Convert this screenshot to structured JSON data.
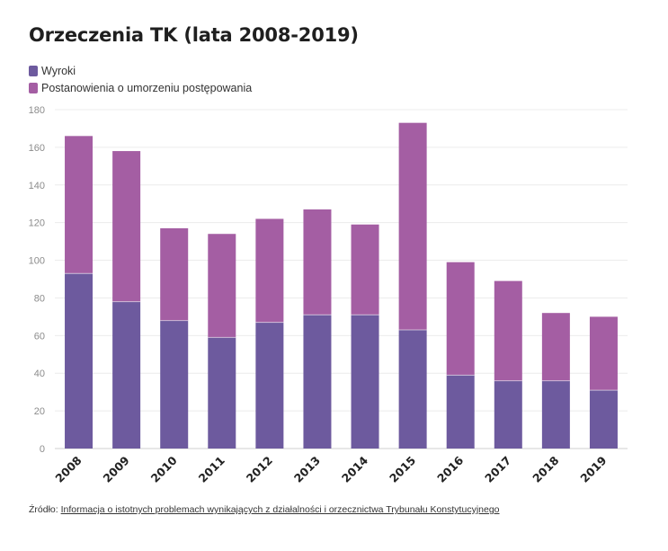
{
  "title": "Orzeczenia TK (lata 2008-2019)",
  "source": {
    "label": "Źródło:",
    "link_text": "Informacja o istotnych problemach wynikających z działalności i orzecznictwa Trybunału Konstytucyjnego"
  },
  "colors": {
    "series_1": "#6d5a9e",
    "series_2": "#a45ea3",
    "grid": "#ececec",
    "axis_text": "#8c8c8c",
    "category_text": "#222222"
  },
  "chart_data": {
    "type": "bar",
    "stacked": true,
    "categories": [
      "2008",
      "2009",
      "2010",
      "2011",
      "2012",
      "2013",
      "2014",
      "2015",
      "2016",
      "2017",
      "2018",
      "2019"
    ],
    "series": [
      {
        "name": "Wyroki",
        "values": [
          93,
          78,
          68,
          59,
          67,
          71,
          71,
          63,
          39,
          36,
          36,
          31
        ]
      },
      {
        "name": "Postanowienia o umorzeniu postępowania",
        "values": [
          73,
          80,
          49,
          55,
          55,
          56,
          48,
          110,
          60,
          53,
          36,
          39
        ]
      }
    ],
    "ylim": [
      0,
      180
    ],
    "yticks": [
      0,
      20,
      40,
      60,
      80,
      100,
      120,
      140,
      160,
      180
    ],
    "grid": true,
    "legend_position": "top-left",
    "xlabel": "",
    "ylabel": ""
  }
}
